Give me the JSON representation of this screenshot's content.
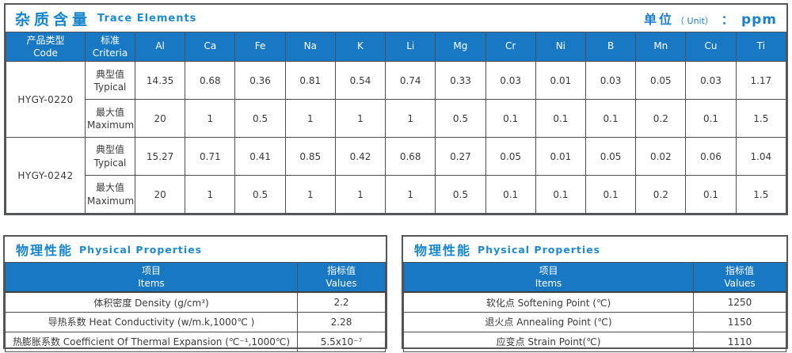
{
  "unit": {
    "zh": "单位",
    "en": "（ Unit）",
    "colon": "：",
    "value": "ppm"
  },
  "trace": {
    "title_zh": "杂质含量",
    "title_en": "Trace Elements",
    "col_code": {
      "zh": "产品类型",
      "en": "Code"
    },
    "col_criteria": {
      "zh": "标准",
      "en": "Criteria"
    },
    "typical_label": {
      "zh": "典型值",
      "en": "Typical"
    },
    "maximum_label": {
      "zh": "最大值",
      "en": "Maximum"
    },
    "elements": [
      "Al",
      "Ca",
      "Fe",
      "Na",
      "K",
      "Li",
      "Mg",
      "Cr",
      "Ni",
      "B",
      "Mn",
      "Cu",
      "Ti"
    ],
    "rows": [
      {
        "code": "HYGY-0220",
        "typical": [
          "14.35",
          "0.68",
          "0.36",
          "0.81",
          "0.54",
          "0.74",
          "0.33",
          "0.03",
          "0.01",
          "0.03",
          "0.05",
          "0.03",
          "1.17"
        ],
        "maximum": [
          "20",
          "1",
          "0.5",
          "1",
          "1",
          "1",
          "0.5",
          "0.1",
          "0.1",
          "0.1",
          "0.2",
          "0.1",
          "1.5"
        ]
      },
      {
        "code": "HYGY-0242",
        "typical": [
          "15.27",
          "0.71",
          "0.41",
          "0.85",
          "0.42",
          "0.68",
          "0.27",
          "0.05",
          "0.01",
          "0.05",
          "0.02",
          "0.06",
          "1.04"
        ],
        "maximum": [
          "20",
          "1",
          "0.5",
          "1",
          "1",
          "1",
          "0.5",
          "0.1",
          "0.1",
          "0.1",
          "0.2",
          "0.1",
          "1.5"
        ]
      }
    ]
  },
  "physical_left": {
    "title_zh": "物理性能",
    "title_en": "Physical Properties",
    "col_items": {
      "zh": "项目",
      "en": "Items"
    },
    "col_values": {
      "zh": "指标值",
      "en": "Values"
    },
    "rows": [
      {
        "item": "体积密度 Density (g/cm³)",
        "value": "2.2"
      },
      {
        "item": "导热系数 Heat Conductivity (w/m.k,1000℃ )",
        "value": "2.28"
      },
      {
        "item": "热膨胀系数 Coefficient Of Thermal Expansion (℃⁻¹,1000℃)",
        "value": "5.5x10⁻⁷"
      }
    ]
  },
  "physical_right": {
    "title_zh": "物理性能",
    "title_en": "Physical Properties",
    "col_items": {
      "zh": "项目",
      "en": "Items"
    },
    "col_values": {
      "zh": "指标值",
      "en": "Values"
    },
    "rows": [
      {
        "item": "软化点 Softening Point (℃)",
        "value": "1250"
      },
      {
        "item": "退火点 Annealing Point (℃)",
        "value": "1150"
      },
      {
        "item": "应变点 Strain Point(℃)",
        "value": "1110"
      }
    ]
  }
}
